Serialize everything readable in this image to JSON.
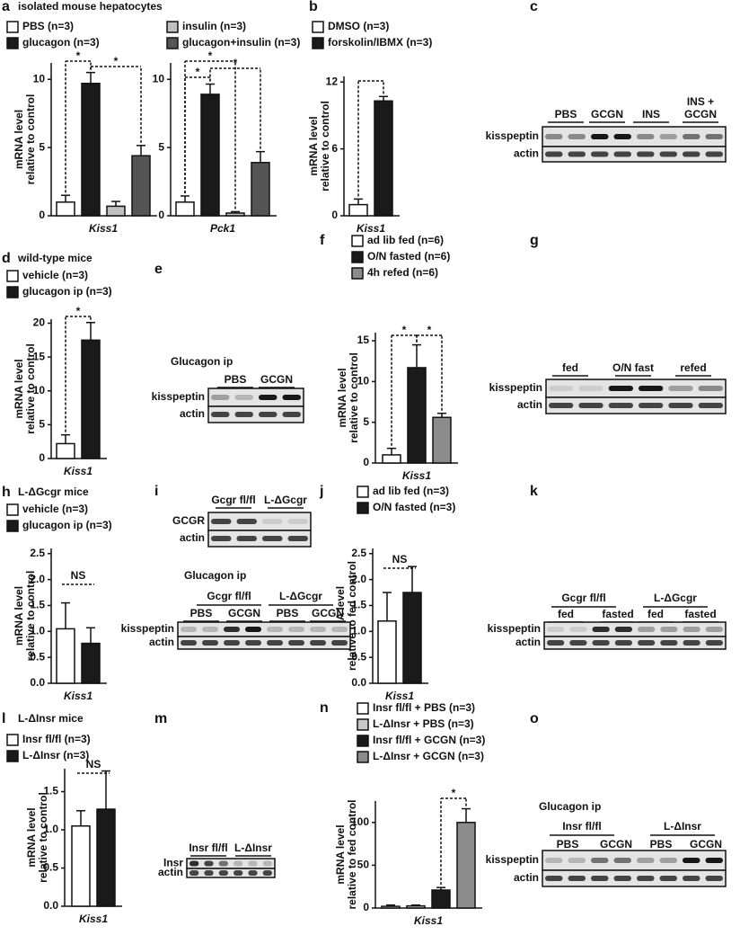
{
  "chart_data": [
    {
      "type": "bar",
      "panel": "a",
      "title": "isolated mouse hepatocytes",
      "ylabel": [
        "mRNA level",
        "relative to control"
      ],
      "categories": [
        "Kiss1"
      ],
      "series": [
        {
          "name": "PBS (n=3)",
          "color": "#ffffff",
          "values": [
            1.0
          ],
          "errors": [
            0.5
          ]
        },
        {
          "name": "glucagon (n=3)",
          "color": "#1a1a1a",
          "values": [
            9.7
          ],
          "errors": [
            0.8
          ]
        },
        {
          "name": "insulin (n=3)",
          "color": "#c0c0c0",
          "values": [
            0.7
          ],
          "errors": [
            0.35
          ]
        },
        {
          "name": "glucagon+insulin (n=3)",
          "color": "#555555",
          "values": [
            4.4
          ],
          "errors": [
            0.75
          ]
        }
      ],
      "ylim": [
        0,
        11.2
      ],
      "yticks": [
        0,
        5,
        10
      ],
      "annotations": [
        "*",
        "*"
      ]
    },
    {
      "type": "bar",
      "categories": [
        "Pck1"
      ],
      "series": [
        {
          "color": "#ffffff",
          "values": [
            1.0
          ],
          "errors": [
            0.45
          ]
        },
        {
          "color": "#1a1a1a",
          "values": [
            8.9
          ],
          "errors": [
            0.75
          ]
        },
        {
          "color": "#c0c0c0",
          "values": [
            0.2
          ],
          "errors": [
            0.1
          ]
        },
        {
          "color": "#555555",
          "values": [
            3.9
          ],
          "errors": [
            0.8
          ]
        }
      ],
      "ylim": [
        0,
        11.2
      ],
      "yticks": [
        0,
        5,
        10
      ],
      "annotations": [
        "*",
        "*",
        "*"
      ]
    },
    {
      "type": "bar",
      "panel": "b",
      "ylabel": [
        "mRNA level",
        "relative to control"
      ],
      "categories": [
        "Kiss1"
      ],
      "series": [
        {
          "name": "DMSO (n=3)",
          "color": "#ffffff",
          "values": [
            1.0
          ],
          "errors": [
            0.5
          ]
        },
        {
          "name": "forskolin/IBMX (n=3)",
          "color": "#1a1a1a",
          "values": [
            10.3
          ],
          "errors": [
            0.4
          ]
        }
      ],
      "ylim": [
        0,
        12.5
      ],
      "yticks": [
        0,
        6,
        12
      ]
    },
    {
      "type": "bar",
      "panel": "d",
      "title": "wild-type mice",
      "ylabel": [
        "mRNA level",
        "relative to control"
      ],
      "categories": [
        "Kiss1"
      ],
      "series": [
        {
          "name": "vehicle (n=3)",
          "color": "#ffffff",
          "values": [
            2.2
          ],
          "errors": [
            1.3
          ]
        },
        {
          "name": "glucagon ip (n=3)",
          "color": "#1a1a1a",
          "values": [
            17.5
          ],
          "errors": [
            2.6
          ]
        }
      ],
      "ylim": [
        0,
        20.6
      ],
      "yticks": [
        0,
        5,
        10,
        15,
        20
      ],
      "annotations": [
        "*"
      ]
    },
    {
      "type": "bar",
      "panel": "f",
      "ylabel": [
        "mRNA level",
        "relative to control"
      ],
      "categories": [
        "Kiss1"
      ],
      "series": [
        {
          "name": "ad lib fed (n=6)",
          "color": "#ffffff",
          "values": [
            1.0
          ],
          "errors": [
            0.8
          ]
        },
        {
          "name": "O/N fasted (n=6)",
          "color": "#1a1a1a",
          "values": [
            11.7
          ],
          "errors": [
            2.8
          ]
        },
        {
          "name": "4h refed (n=6)",
          "color": "#8c8c8c",
          "values": [
            5.6
          ],
          "errors": [
            0.5
          ]
        }
      ],
      "ylim": [
        0,
        16
      ],
      "yticks": [
        0,
        5,
        10,
        15
      ],
      "annotations": [
        "*",
        "*"
      ]
    },
    {
      "type": "bar",
      "panel": "h",
      "title": "L-ΔGcgr mice",
      "ylabel": [
        "mRNA level",
        "relative to control"
      ],
      "categories": [
        "Kiss1"
      ],
      "series": [
        {
          "name": "vehicle (n=3)",
          "color": "#ffffff",
          "values": [
            1.05
          ],
          "errors": [
            0.5
          ]
        },
        {
          "name": "glucagon ip (n=3)",
          "color": "#1a1a1a",
          "values": [
            0.77
          ],
          "errors": [
            0.3
          ]
        }
      ],
      "ylim": [
        0,
        2.6
      ],
      "yticks": [
        {
          "value": 0,
          "label": "0.0"
        },
        0.5,
        {
          "value": 1,
          "label": "1.0"
        },
        1.5,
        {
          "value": 2,
          "label": "2.0"
        },
        2.5
      ],
      "annotations": [
        "NS"
      ]
    },
    {
      "type": "bar",
      "panel": "j",
      "ylabel": [
        "mRNA level",
        "relative to fed control"
      ],
      "categories": [
        "Kiss1"
      ],
      "series": [
        {
          "name": "ad lib fed (n=3)",
          "color": "#ffffff",
          "values": [
            1.2
          ],
          "errors": [
            0.55
          ]
        },
        {
          "name": "O/N fasted (n=3)",
          "color": "#1a1a1a",
          "values": [
            1.75
          ],
          "errors": [
            0.5
          ]
        }
      ],
      "ylim": [
        0,
        2.6
      ],
      "yticks": [
        {
          "value": 0,
          "label": "0.0"
        },
        0.5,
        {
          "value": 1,
          "label": "1.0"
        },
        1.5,
        {
          "value": 2,
          "label": "2.0"
        },
        2.5
      ],
      "annotations": [
        "NS"
      ]
    },
    {
      "type": "bar",
      "panel": "l",
      "title": "L-ΔInsr mice",
      "ylabel": [
        "mRNA level",
        "relative to control"
      ],
      "categories": [
        "Kiss1"
      ],
      "series": [
        {
          "name": "Insr fl/fl (n=3)",
          "color": "#ffffff",
          "values": [
            1.05
          ],
          "errors": [
            0.2
          ]
        },
        {
          "name": "L-ΔInsr (n=3)",
          "color": "#1a1a1a",
          "values": [
            1.27
          ],
          "errors": [
            0.5
          ]
        }
      ],
      "ylim": [
        0,
        1.8
      ],
      "yticks": [
        {
          "value": 0,
          "label": "0.0"
        },
        0.5,
        {
          "value": 1,
          "label": "1.0"
        },
        1.5
      ],
      "annotations": [
        "NS"
      ]
    },
    {
      "type": "bar",
      "panel": "n",
      "ylabel": [
        "mRNA level",
        "relative to fed control"
      ],
      "categories": [
        "Kiss1"
      ],
      "series": [
        {
          "name": "Insr fl/fl + PBS (n=3)",
          "color": "#ffffff",
          "values": [
            2
          ],
          "errors": [
            1.5
          ]
        },
        {
          "name": "L-ΔInsr + PBS (n=3)",
          "color": "#c8c8c8",
          "values": [
            2.5
          ],
          "errors": [
            1.0
          ]
        },
        {
          "name": "Insr fl/fl + GCGN (n=3)",
          "color": "#1a1a1a",
          "values": [
            21
          ],
          "errors": [
            3
          ]
        },
        {
          "name": "L-ΔInsr + GCGN (n=3)",
          "color": "#8c8c8c",
          "values": [
            100
          ],
          "errors": [
            16
          ]
        }
      ],
      "ylim": [
        0,
        125
      ],
      "yticks": [
        0,
        50,
        100
      ],
      "annotations": [
        "*"
      ]
    }
  ],
  "blots": [
    {
      "panel": "c",
      "groups": [
        "PBS",
        "GCGN",
        "INS",
        [
          "INS +",
          "GCGN"
        ]
      ],
      "rows": [
        "kisspeptin",
        "actin"
      ]
    },
    {
      "panel": "e",
      "title": "Glucagon ip",
      "groups": [
        "PBS",
        "GCGN"
      ],
      "rows": [
        "kisspeptin",
        "actin"
      ]
    },
    {
      "panel": "g",
      "groups": [
        "fed",
        "O/N fast",
        "refed"
      ],
      "rows": [
        "kisspeptin",
        "actin"
      ]
    },
    {
      "panel": "i",
      "groups": [
        "Gcgr fl/fl",
        "L-ΔGcgr"
      ],
      "rows": [
        "GCGR",
        "actin"
      ]
    },
    {
      "title": "Glucagon ip",
      "genotypes": [
        "Gcgr fl/fl",
        "L-ΔGcgr"
      ],
      "groups": [
        "PBS",
        "GCGN",
        "PBS",
        "GCGN"
      ],
      "rows": [
        "kisspeptin",
        "actin"
      ]
    },
    {
      "panel": "k",
      "genotypes": [
        "Gcgr fl/fl",
        "L-ΔGcgr"
      ],
      "groups": [
        "fed",
        "fasted",
        "fed",
        "fasted"
      ],
      "rows": [
        "kisspeptin",
        "actin"
      ]
    },
    {
      "panel": "m",
      "groups": [
        "Insr fl/fl",
        "L-ΔInsr"
      ],
      "rows": [
        "Insr",
        "actin"
      ]
    },
    {
      "panel": "o",
      "title": "Glucagon ip",
      "genotypes": [
        "Insr fl/fl",
        "L-ΔInsr"
      ],
      "groups": [
        "PBS",
        "GCGN",
        "PBS",
        "GCGN"
      ],
      "rows": [
        "kisspeptin",
        "actin"
      ]
    }
  ]
}
